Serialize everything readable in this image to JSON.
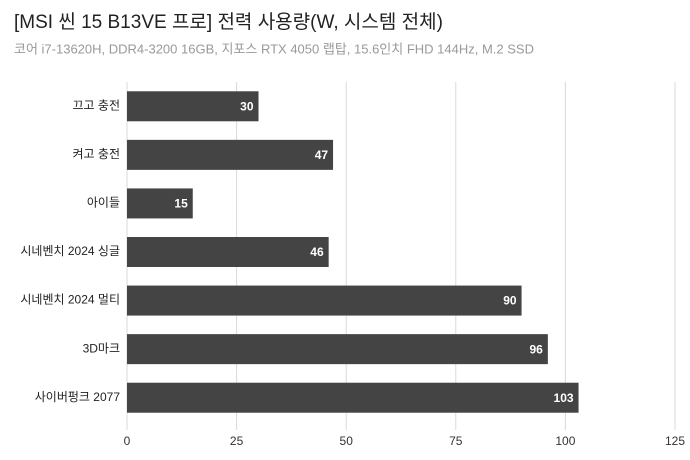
{
  "chart_data": {
    "type": "bar",
    "orientation": "horizontal",
    "title": "[MSI 씬 15 B13VE 프로] 전력 사용량(W, 시스템 전체)",
    "subtitle": "코어 i7-13620H, DDR4-3200 16GB, 지포스 RTX 4050 랩탑, 15.6인치 FHD 144Hz, M.2 SSD",
    "categories": [
      "끄고 충전",
      "켜고 충전",
      "아이들",
      "시네벤치 2024 싱글",
      "시네벤치 2024 멀티",
      "3D마크",
      "사이버펑크 2077"
    ],
    "values": [
      30,
      47,
      15,
      46,
      90,
      96,
      103
    ],
    "color": "#444444",
    "xlim": [
      0,
      125
    ],
    "xticks": [
      0,
      25,
      50,
      75,
      100,
      125
    ],
    "grid": true
  }
}
